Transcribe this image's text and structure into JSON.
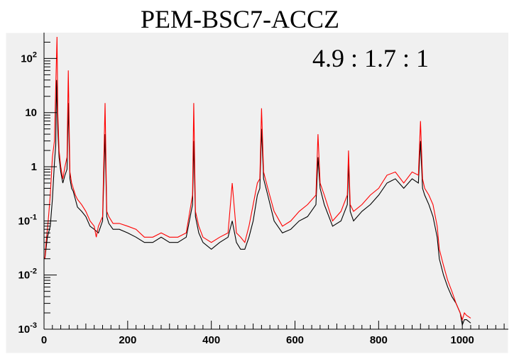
{
  "chart_data": {
    "type": "line",
    "title": "PEM-BSC7-ACCZ",
    "annotation": "4.9 : 1.7 : 1",
    "xlabel": "",
    "ylabel": "",
    "xlim": [
      0,
      1110
    ],
    "ylim": [
      0.001,
      300
    ],
    "yscale": "log",
    "grid": false,
    "legend": "none",
    "x_ticks": [
      0,
      200,
      400,
      600,
      800,
      1000
    ],
    "x_tick_labels": [
      "0",
      "200",
      "400",
      "600",
      "800",
      "1000"
    ],
    "y_ticks": [
      {
        "value": 0.001,
        "base": "10",
        "exp": "-3"
      },
      {
        "value": 0.01,
        "base": "10",
        "exp": "-2"
      },
      {
        "value": 0.1,
        "base": "10",
        "exp": "-1"
      },
      {
        "value": 1,
        "base": "1",
        "exp": ""
      },
      {
        "value": 10,
        "base": "10",
        "exp": ""
      },
      {
        "value": 100,
        "base": "10",
        "exp": "2"
      }
    ],
    "colors": {
      "frame_bg": "#f0f0f0",
      "plot_bg": "#f0f0f0",
      "series_black": "#000000",
      "series_red": "#ff0000"
    },
    "series": [
      {
        "color": "#000000",
        "x": [
          2,
          8,
          15,
          20,
          25,
          28,
          30,
          33,
          36,
          40,
          45,
          50,
          55,
          58,
          62,
          66,
          70,
          75,
          80,
          90,
          100,
          110,
          120,
          130,
          140,
          146,
          150,
          155,
          165,
          180,
          200,
          220,
          240,
          260,
          280,
          300,
          320,
          340,
          355,
          358,
          362,
          370,
          380,
          400,
          420,
          440,
          450,
          460,
          470,
          480,
          490,
          500,
          510,
          516,
          520,
          525,
          535,
          550,
          570,
          590,
          610,
          630,
          650,
          655,
          660,
          670,
          690,
          710,
          725,
          728,
          732,
          740,
          760,
          780,
          800,
          820,
          840,
          860,
          880,
          895,
          900,
          905,
          910,
          920,
          930,
          940,
          945,
          955,
          965,
          975,
          985,
          995,
          1000,
          1005,
          1010,
          1020
        ],
        "y": [
          0.02,
          0.05,
          0.08,
          0.25,
          1.2,
          2.5,
          40,
          5,
          1.5,
          0.8,
          0.5,
          0.7,
          0.9,
          15,
          0.6,
          0.4,
          0.35,
          0.25,
          0.18,
          0.15,
          0.12,
          0.08,
          0.07,
          0.06,
          0.1,
          4,
          0.12,
          0.09,
          0.07,
          0.07,
          0.06,
          0.05,
          0.04,
          0.04,
          0.05,
          0.04,
          0.04,
          0.05,
          0.2,
          3,
          0.12,
          0.06,
          0.04,
          0.03,
          0.04,
          0.05,
          0.1,
          0.04,
          0.03,
          0.03,
          0.05,
          0.1,
          0.3,
          0.4,
          5,
          0.6,
          0.3,
          0.1,
          0.06,
          0.07,
          0.1,
          0.12,
          0.2,
          1.5,
          0.4,
          0.2,
          0.08,
          0.1,
          0.2,
          1.2,
          0.15,
          0.1,
          0.15,
          0.2,
          0.3,
          0.5,
          0.6,
          0.4,
          0.6,
          0.5,
          3,
          0.4,
          0.3,
          0.2,
          0.12,
          0.05,
          0.02,
          0.01,
          0.006,
          0.004,
          0.003,
          0.002,
          0.0012,
          0.0015,
          0.0015,
          0.0013
        ]
      },
      {
        "color": "#ff0000",
        "x": [
          2,
          5,
          10,
          15,
          20,
          25,
          28,
          31,
          33,
          36,
          40,
          45,
          50,
          55,
          58,
          62,
          66,
          70,
          75,
          80,
          90,
          100,
          110,
          120,
          125,
          130,
          140,
          146,
          150,
          155,
          165,
          180,
          200,
          220,
          240,
          260,
          280,
          300,
          320,
          340,
          355,
          358,
          362,
          370,
          380,
          400,
          420,
          440,
          450,
          460,
          470,
          480,
          490,
          500,
          510,
          516,
          520,
          525,
          535,
          550,
          570,
          590,
          610,
          630,
          650,
          655,
          660,
          670,
          690,
          710,
          725,
          728,
          732,
          740,
          760,
          780,
          800,
          820,
          840,
          860,
          880,
          895,
          900,
          905,
          910,
          920,
          930,
          940,
          945,
          955,
          965,
          975,
          985,
          995,
          1000,
          1005,
          1010,
          1020
        ],
        "y": [
          0.02,
          0.04,
          0.1,
          0.3,
          1.5,
          3,
          30,
          250,
          10,
          2,
          1,
          0.6,
          1,
          1.5,
          60,
          0.8,
          0.5,
          0.4,
          0.3,
          0.25,
          0.2,
          0.15,
          0.1,
          0.08,
          0.05,
          0.08,
          0.12,
          15,
          0.15,
          0.12,
          0.09,
          0.09,
          0.08,
          0.07,
          0.05,
          0.05,
          0.06,
          0.05,
          0.05,
          0.06,
          0.3,
          15,
          0.15,
          0.08,
          0.05,
          0.04,
          0.05,
          0.06,
          0.5,
          0.06,
          0.05,
          0.04,
          0.08,
          0.2,
          0.5,
          0.6,
          12,
          0.8,
          0.4,
          0.15,
          0.08,
          0.1,
          0.15,
          0.2,
          0.3,
          4,
          0.5,
          0.3,
          0.1,
          0.15,
          0.3,
          2,
          0.2,
          0.15,
          0.2,
          0.3,
          0.4,
          0.7,
          0.8,
          0.5,
          0.8,
          0.7,
          7,
          0.6,
          0.4,
          0.3,
          0.2,
          0.08,
          0.03,
          0.015,
          0.008,
          0.005,
          0.003,
          0.002,
          0.0015,
          0.002,
          0.0018,
          0.0016
        ]
      }
    ]
  }
}
